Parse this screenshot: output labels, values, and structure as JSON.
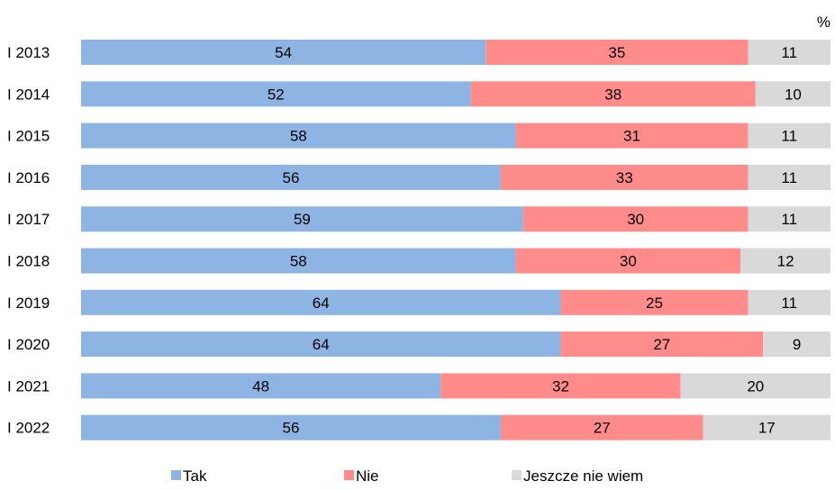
{
  "chart_data": {
    "type": "bar",
    "orientation": "horizontal",
    "stacked": true,
    "unit_label": "%",
    "categories": [
      "I 2013",
      "I 2014",
      "I 2015",
      "I 2016",
      "I 2017",
      "I 2018",
      "I 2019",
      "I 2020",
      "I 2021",
      "I 2022"
    ],
    "series": [
      {
        "name": "Tak",
        "color": "#8DB4E2",
        "values": [
          54,
          52,
          58,
          56,
          59,
          58,
          64,
          64,
          48,
          56
        ]
      },
      {
        "name": "Nie",
        "color": "#FF8B8B",
        "values": [
          35,
          38,
          31,
          33,
          30,
          30,
          25,
          27,
          32,
          27
        ]
      },
      {
        "name": "Jeszcze nie wiem",
        "color": "#D9D9D9",
        "values": [
          11,
          10,
          11,
          11,
          11,
          12,
          11,
          9,
          20,
          17
        ]
      }
    ],
    "xlim": [
      0,
      100
    ],
    "grid": false,
    "legend_position": "bottom"
  }
}
